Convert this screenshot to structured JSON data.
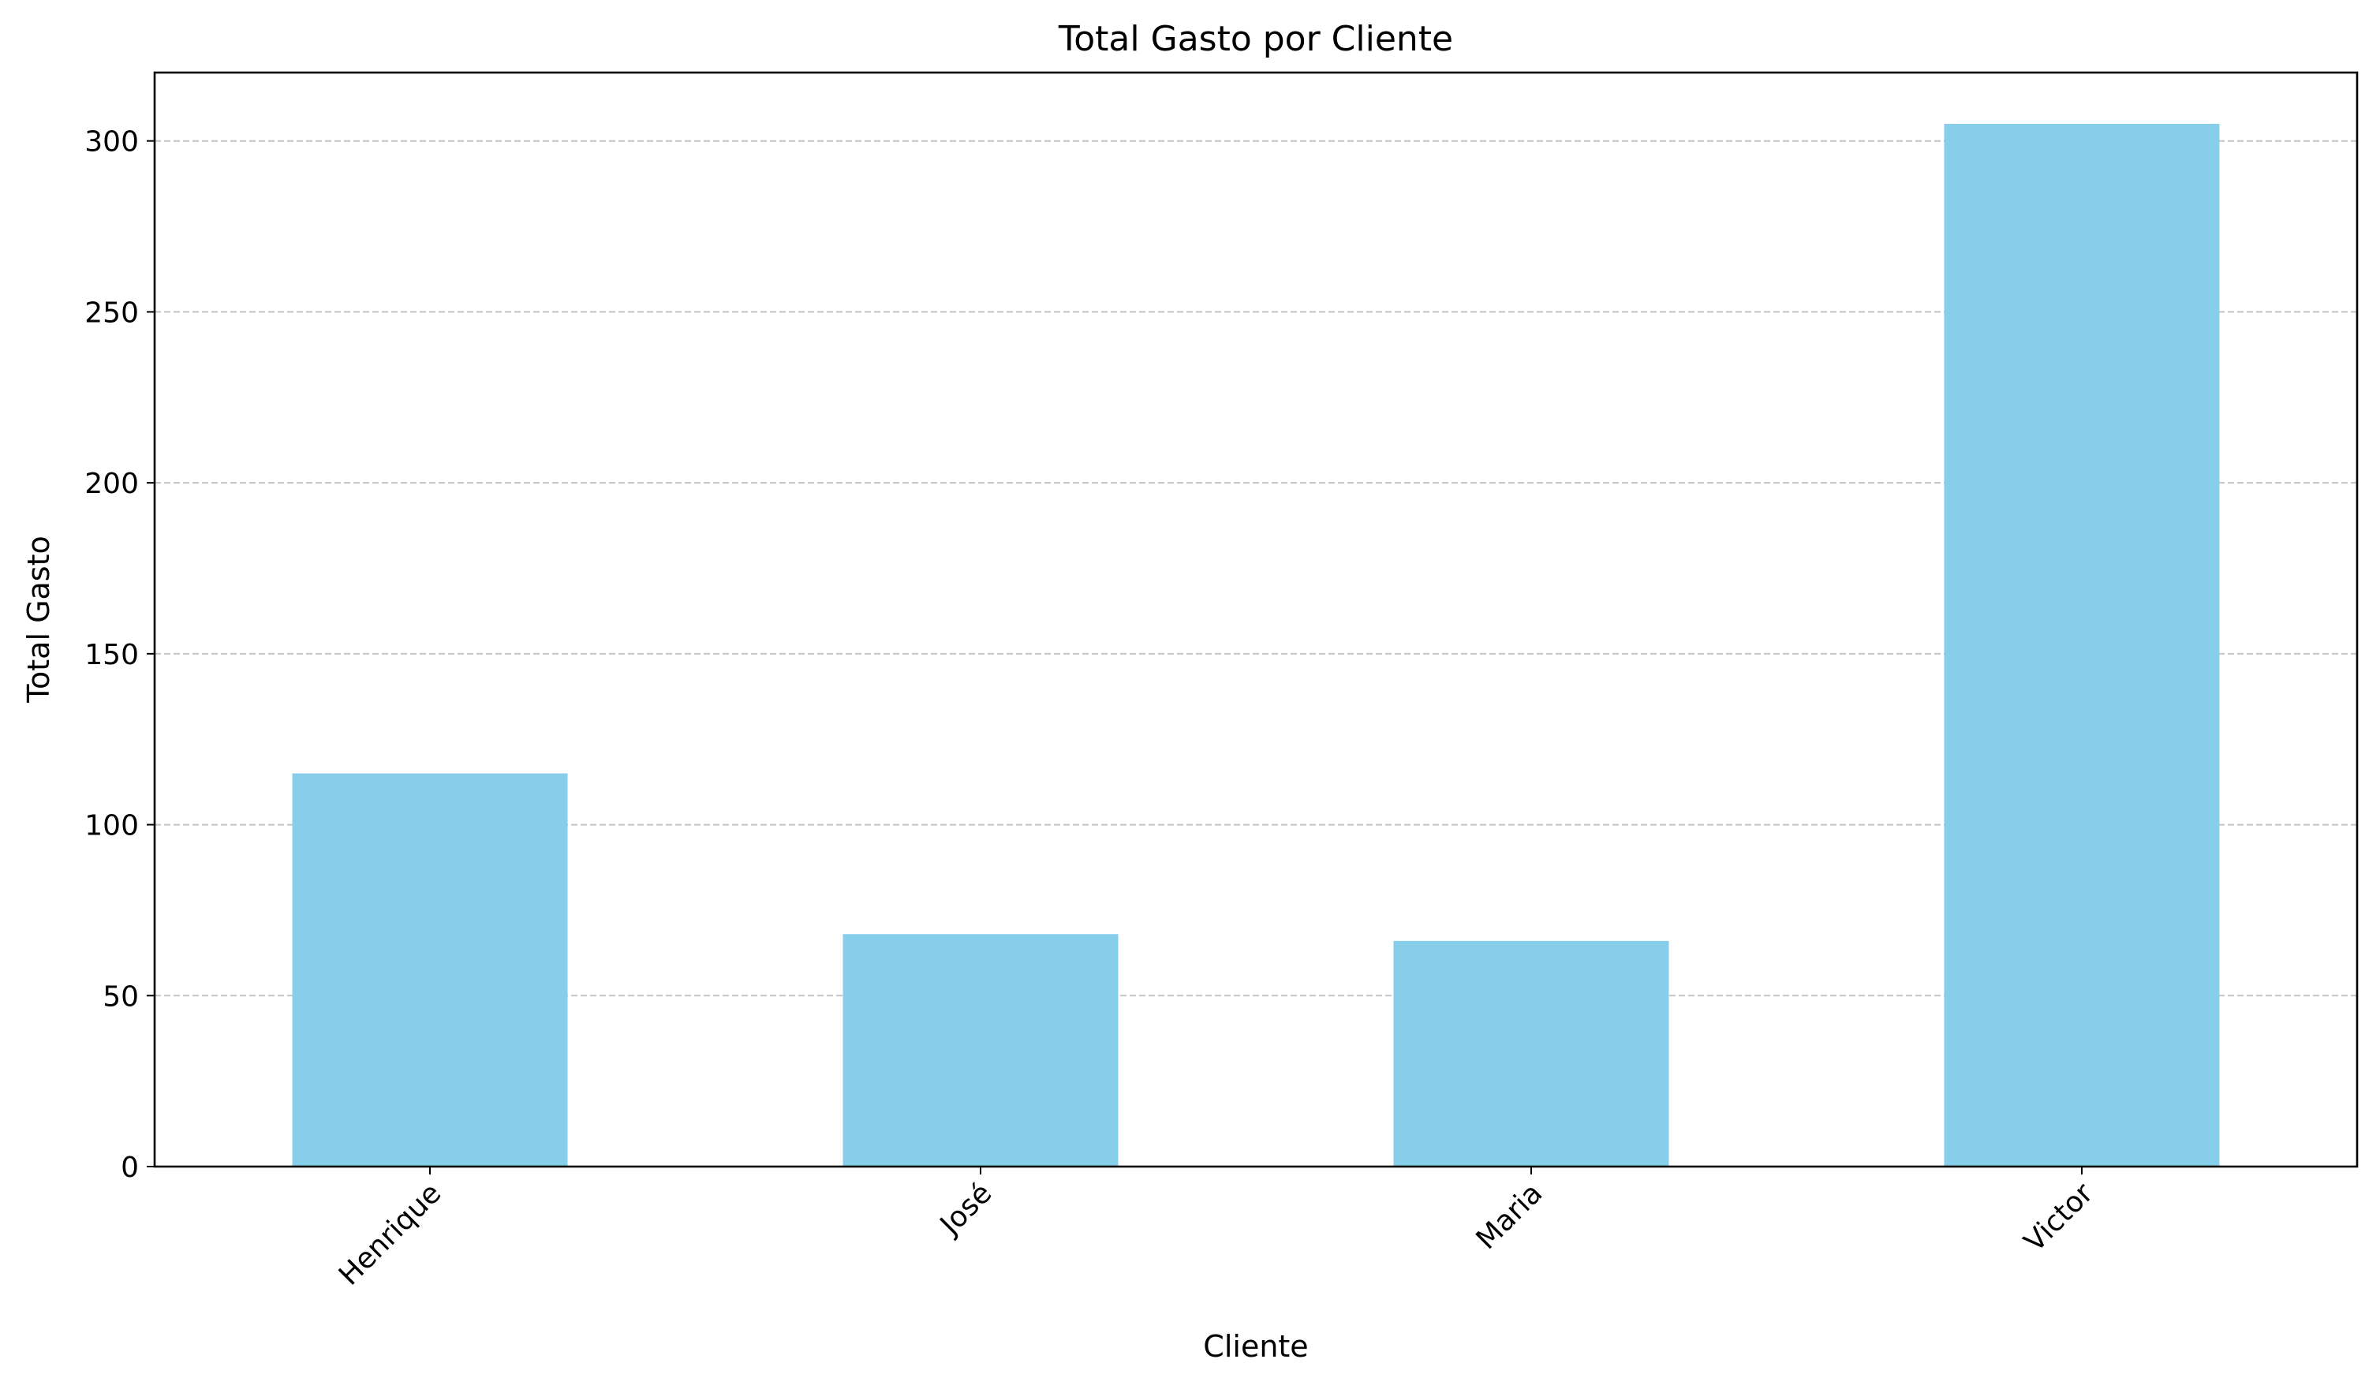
{
  "chart_data": {
    "type": "bar",
    "title": "Total Gasto por Cliente",
    "xlabel": "Cliente",
    "ylabel": "Total Gasto",
    "categories": [
      "Henrique",
      "José",
      "Maria",
      "Victor"
    ],
    "values": [
      115,
      68,
      66,
      305
    ],
    "ylim": [
      0,
      320
    ],
    "yticks": [
      0,
      50,
      100,
      150,
      200,
      250,
      300
    ],
    "ytick_labels": [
      "0",
      "50",
      "100",
      "150",
      "200",
      "250",
      "300"
    ],
    "xtick_rotation_deg": 45,
    "grid": {
      "axis": "y",
      "style": "dashed"
    },
    "colors": {
      "bar": "#87CEEB",
      "grid": "#c4c4c4",
      "axis": "#000000"
    }
  }
}
